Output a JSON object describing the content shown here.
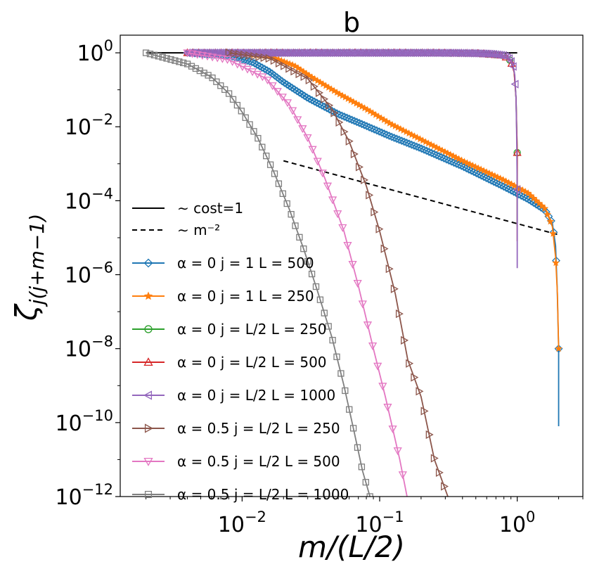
{
  "chart_data": {
    "type": "line",
    "title": "b",
    "xlabel": "m/(L/2)",
    "ylabel": "ζ_{j(j+m−1)}",
    "xscale": "log",
    "yscale": "log",
    "xlim": [
      0.0013,
      3.0
    ],
    "ylim": [
      1e-12,
      3
    ],
    "x_ticks": [
      {
        "value": 0.01,
        "base": "10",
        "exp": "−2"
      },
      {
        "value": 0.1,
        "base": "10",
        "exp": "−1"
      },
      {
        "value": 1,
        "base": "10",
        "exp": "0"
      }
    ],
    "y_ticks": [
      {
        "value": 1,
        "base": "10",
        "exp": "0"
      },
      {
        "value": 0.01,
        "base": "10",
        "exp": "−2"
      },
      {
        "value": 0.0001,
        "base": "10",
        "exp": "−4"
      },
      {
        "value": 1e-06,
        "base": "10",
        "exp": "−6"
      },
      {
        "value": 1e-08,
        "base": "10",
        "exp": "−8"
      },
      {
        "value": 1e-10,
        "base": "10",
        "exp": "−10"
      },
      {
        "value": 1e-12,
        "base": "10",
        "exp": "−12"
      }
    ],
    "legend_position": "lower-left",
    "reference_lines": [
      {
        "name": "~ cost=1",
        "label": "∼ cost=1",
        "style": "solid",
        "color": "#000000",
        "x": [
          0.002,
          1.0
        ],
        "y": [
          1.0,
          1.0
        ]
      },
      {
        "name": "~ m^-2",
        "label": "∼ m⁻²",
        "style": "dashed",
        "color": "#000000",
        "x": [
          0.02,
          2.0
        ],
        "y": [
          0.0012,
          1.2e-05
        ]
      }
    ],
    "series": [
      {
        "name": "alpha0-j1-L500",
        "label": "α = 0 j = 1 L = 500",
        "color": "#1f77b4",
        "marker": "diamond",
        "x": [
          0.004,
          0.008,
          0.012,
          0.016,
          0.02,
          0.03,
          0.05,
          0.08,
          0.12,
          0.2,
          0.4,
          0.8,
          1.2,
          1.6,
          1.8,
          1.9,
          1.95,
          2.0,
          2.0
        ],
        "y": [
          1.0,
          0.85,
          0.55,
          0.3,
          0.16,
          0.06,
          0.022,
          0.0105,
          0.0055,
          0.0026,
          0.00085,
          0.00024,
          0.00011,
          5.5e-05,
          2.5e-05,
          6e-06,
          5e-07,
          1e-08,
          8e-11
        ]
      },
      {
        "name": "alpha0-j1-L250",
        "label": "α = 0 j = 1 L = 250",
        "color": "#ff7f0e",
        "marker": "star",
        "x": [
          0.008,
          0.016,
          0.024,
          0.032,
          0.05,
          0.08,
          0.12,
          0.2,
          0.4,
          0.8,
          1.2,
          1.6,
          1.8,
          1.9,
          1.96,
          2.0
        ],
        "y": [
          1.0,
          0.8,
          0.45,
          0.22,
          0.08,
          0.03,
          0.012,
          0.0045,
          0.0012,
          0.00036,
          0.00016,
          6e-05,
          2e-05,
          3e-06,
          3e-07,
          1e-08
        ]
      },
      {
        "name": "alpha0-jhalf-L250",
        "label": "α = 0 j = L/2 L = 250",
        "color": "#2ca02c",
        "marker": "circle",
        "x": [
          0.008,
          0.05,
          0.2,
          0.5,
          0.8,
          0.9,
          0.95,
          0.98,
          1.0,
          1.0
        ],
        "y": [
          1.0,
          1.0,
          1.0,
          0.97,
          0.85,
          0.6,
          0.3,
          0.06,
          0.002,
          2e-05
        ]
      },
      {
        "name": "alpha0-jhalf-L500",
        "label": "α = 0 j = L/2 L = 500",
        "color": "#d62728",
        "marker": "triangle-up",
        "x": [
          0.004,
          0.05,
          0.2,
          0.5,
          0.8,
          0.9,
          0.95,
          0.98,
          1.0,
          1.0
        ],
        "y": [
          1.0,
          1.0,
          1.0,
          0.97,
          0.85,
          0.6,
          0.3,
          0.06,
          0.002,
          8e-06
        ]
      },
      {
        "name": "alpha0-jhalf-L1000",
        "label": "α = 0 j = L/2 L = 1000",
        "color": "#9467bd",
        "marker": "triangle-left",
        "x": [
          0.004,
          0.02,
          0.05,
          0.1,
          0.2,
          0.35,
          0.5,
          0.65,
          0.8,
          0.88,
          0.93,
          0.96,
          0.98,
          0.99,
          1.0,
          1.0
        ],
        "y": [
          1.0,
          1.0,
          1.0,
          1.0,
          1.0,
          0.99,
          0.97,
          0.93,
          0.85,
          0.7,
          0.5,
          0.25,
          0.06,
          0.006,
          0.0002,
          1.5e-06
        ]
      },
      {
        "name": "alpha05-jhalf-L250",
        "label": "α = 0.5 j = L/2 L = 250",
        "color": "#8c564b",
        "marker": "triangle-right",
        "x": [
          0.008,
          0.016,
          0.03,
          0.045,
          0.06,
          0.08,
          0.1,
          0.13,
          0.16,
          0.2,
          0.25,
          0.32
        ],
        "y": [
          1.0,
          0.7,
          0.2,
          0.03,
          0.004,
          0.00025,
          1.5e-05,
          3e-07,
          5e-09,
          5e-10,
          1e-11,
          8e-13
        ]
      },
      {
        "name": "alpha05-jhalf-L500",
        "label": "α = 0.5 j = L/2 L = 500",
        "color": "#e377c2",
        "marker": "triangle-down",
        "x": [
          0.004,
          0.008,
          0.015,
          0.022,
          0.03,
          0.04,
          0.055,
          0.07,
          0.09,
          0.11,
          0.14,
          0.16
        ],
        "y": [
          1.0,
          0.65,
          0.2,
          0.04,
          0.005,
          0.0004,
          1.5e-05,
          5e-07,
          1e-08,
          5e-10,
          1e-11,
          8e-13
        ]
      },
      {
        "name": "alpha05-jhalf-L1000",
        "label": "α = 0.5 j = L/2 L = 1000",
        "color": "#7f7f7f",
        "marker": "square",
        "x": [
          0.002,
          0.004,
          0.006,
          0.008,
          0.01,
          0.013,
          0.017,
          0.022,
          0.028,
          0.035,
          0.045,
          0.055,
          0.065,
          0.075,
          0.085
        ],
        "y": [
          1.0,
          0.5,
          0.22,
          0.08,
          0.025,
          0.005,
          0.0006,
          6e-05,
          5e-06,
          4e-07,
          2e-08,
          1e-09,
          6e-11,
          5e-12,
          1e-12
        ]
      }
    ]
  }
}
